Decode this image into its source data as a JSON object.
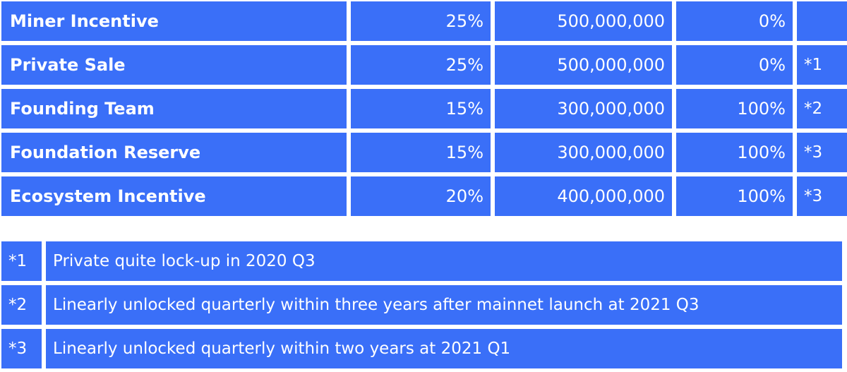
{
  "allocation": [
    {
      "name": "Miner Incentive",
      "percent": "25%",
      "amount": "500,000,000",
      "unlocked": "0%",
      "note": ""
    },
    {
      "name": "Private Sale",
      "percent": "25%",
      "amount": "500,000,000",
      "unlocked": "0%",
      "note": "*1"
    },
    {
      "name": "Founding Team",
      "percent": "15%",
      "amount": "300,000,000",
      "unlocked": "100%",
      "note": "*2"
    },
    {
      "name": "Foundation Reserve",
      "percent": "15%",
      "amount": "300,000,000",
      "unlocked": "100%",
      "note": "*3"
    },
    {
      "name": "Ecosystem Incentive",
      "percent": "20%",
      "amount": "400,000,000",
      "unlocked": "100%",
      "note": "*3"
    }
  ],
  "footnotes": [
    {
      "mark": "*1",
      "text": "Private quite lock-up in 2020 Q3"
    },
    {
      "mark": "*2",
      "text": "Linearly unlocked quarterly within three years after mainnet launch at 2021 Q3"
    },
    {
      "mark": "*3",
      "text": "Linearly unlocked quarterly within two years at 2021 Q1"
    }
  ],
  "colors": {
    "cell": "#3a6ff8",
    "text": "#ffffff"
  }
}
